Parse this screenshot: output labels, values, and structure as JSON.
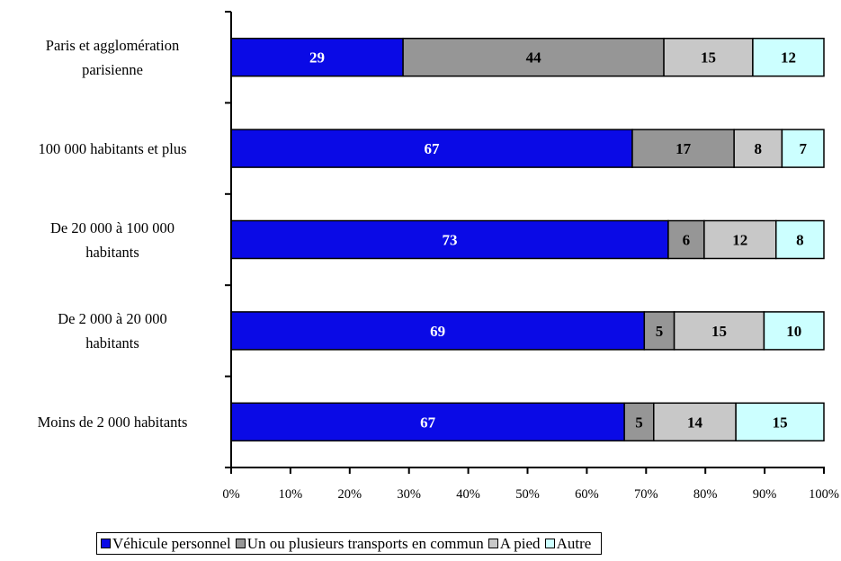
{
  "chart_data": {
    "type": "bar",
    "orientation": "horizontal",
    "stacked": "percent",
    "categories": [
      "Paris et agglomération\nparisienne",
      "100 000 habitants et plus",
      "De 20 000 à 100 000\nhabitants",
      "De 2 000 à 20 000\nhabitants",
      "Moins de  2 000 habitants"
    ],
    "series": [
      {
        "name": "Véhicule personnel",
        "color": "#0a0ae6",
        "label_color": "#ffffff",
        "values": [
          29,
          67,
          73,
          69,
          67
        ]
      },
      {
        "name": "Un ou plusieurs transports en commun",
        "color": "#969696",
        "label_color": "#000000",
        "values": [
          44,
          17,
          6,
          5,
          5
        ]
      },
      {
        "name": "A pied",
        "color": "#c8c8c8",
        "label_color": "#000000",
        "values": [
          15,
          8,
          12,
          15,
          14
        ]
      },
      {
        "name": "Autre",
        "color": "#ccffff",
        "label_color": "#000000",
        "values": [
          12,
          7,
          8,
          10,
          15
        ]
      }
    ],
    "xlim": [
      0,
      100
    ],
    "x_ticks": [
      "0%",
      "10%",
      "20%",
      "30%",
      "40%",
      "50%",
      "60%",
      "70%",
      "80%",
      "90%",
      "100%"
    ],
    "grid": false,
    "legend_position": "bottom",
    "title": "",
    "xlabel": "",
    "ylabel": ""
  }
}
